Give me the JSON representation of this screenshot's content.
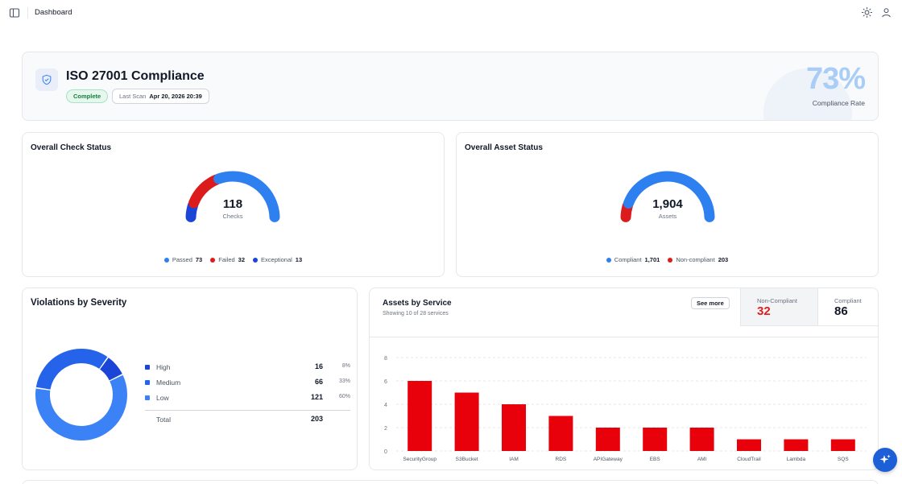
{
  "topbar": {
    "title": "Dashboard"
  },
  "compliance": {
    "title": "ISO 27001 Compliance",
    "status_badge": "Complete",
    "last_scan_label": "Last Scan",
    "last_scan_value": "Apr 20, 2026 20:39",
    "rate": "73%",
    "rate_label": "Compliance Rate"
  },
  "check_status": {
    "title": "Overall Check Status",
    "total": "118",
    "total_label": "Checks",
    "segments": [
      {
        "label": "Passed",
        "value": 73,
        "color": "#2e7ff0"
      },
      {
        "label": "Failed",
        "value": 32,
        "color": "#dc1c1c"
      },
      {
        "label": "Exceptional",
        "value": 13,
        "color": "#1b45d6"
      }
    ]
  },
  "asset_status": {
    "title": "Overall Asset Status",
    "total": "1,904",
    "total_label": "Assets",
    "segments": [
      {
        "label": "Compliant",
        "value": 1701,
        "display": "1,701",
        "color": "#2e7ff0"
      },
      {
        "label": "Non-compliant",
        "value": 203,
        "display": "203",
        "color": "#dc1c1c"
      }
    ]
  },
  "violations": {
    "title": "Violations by Severity",
    "rows": [
      {
        "label": "High",
        "count": "16",
        "pct": "8%",
        "value": 16,
        "color": "#1b45d6"
      },
      {
        "label": "Medium",
        "count": "66",
        "pct": "33%",
        "value": 66,
        "color": "#2563eb"
      },
      {
        "label": "Low",
        "count": "121",
        "pct": "60%",
        "value": 121,
        "color": "#3b82f6"
      }
    ],
    "total_label": "Total",
    "total": "203"
  },
  "assets_by_service": {
    "title": "Assets by Service",
    "subtitle": "Showing 10 of 28 services",
    "see_more": "See more",
    "non_compliant_label": "Non-Compliant",
    "non_compliant_value": "32",
    "compliant_label": "Compliant",
    "compliant_value": "86"
  },
  "colors": {
    "blue": "#2e7ff0",
    "red": "#dc1c1c",
    "dark_blue": "#1b45d6",
    "bar": "#e8000b"
  },
  "chart_data": {
    "type": "bar",
    "categories": [
      "SecurityGroup",
      "S3Bucket",
      "IAM",
      "RDS",
      "APIGateway",
      "EBS",
      "AMI",
      "CloudTrail",
      "Lambda",
      "SQS"
    ],
    "series": [
      {
        "values": [
          6,
          5,
          4,
          3,
          2,
          2,
          2,
          1,
          1,
          1
        ]
      }
    ],
    "yticks": [
      0,
      2,
      4,
      6,
      8
    ],
    "ylim": [
      0,
      8
    ],
    "grid": true,
    "title": "",
    "xlabel": "",
    "ylabel": ""
  }
}
